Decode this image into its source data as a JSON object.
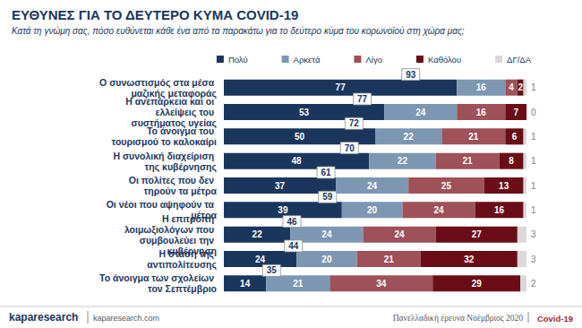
{
  "chart_data": {
    "type": "bar",
    "title": "ΕΥΘΥΝΕΣ ΓΙΑ ΤΟ ΔΕΥΤΕΡΟ ΚΥΜΑ COVID-19",
    "subtitle": "Κατά τη γνώμη σας, πόσο ευθύνεται κάθε ένα από τα παρακάτω για το δεύτερο κύμα του κορωνοϊού στη χώρα μας;",
    "orientation": "horizontal",
    "stacked": true,
    "data_labels": true,
    "tick_labels": "y",
    "grid": false,
    "legend": "top-right",
    "xlim": [
      0,
      100
    ],
    "categories": [
      "Ο συνωστισμός στα μέσα μαζικής μεταφοράς",
      "Η ανεπάρκεια και οι ελλείψεις του συστήματος υγείας",
      "Το άνοιγμα του τουρισμού το καλοκαίρι",
      "Η συνολική διαχείριση της κυβέρνησης",
      "Οι πολίτες που δεν τηρούν τα μέτρα",
      "Οι νέοι που αψηφούν τα μέτρα",
      "Η επιτροπή λοιμωξιολόγων που συμβουλεύει την κυβέρνηση",
      "Η στάση της αντιπολίτευσης",
      "Το άνοιγμα των σχολείων τον Σεπτέμβριο"
    ],
    "series": [
      {
        "name": "Πολύ",
        "color": "#1b365d",
        "values": [
          77,
          53,
          50,
          48,
          37,
          39,
          22,
          24,
          14
        ]
      },
      {
        "name": "Αρκετά",
        "color": "#7d97b3",
        "values": [
          16,
          24,
          22,
          22,
          24,
          20,
          24,
          20,
          21
        ]
      },
      {
        "name": "Λίγο",
        "color": "#9e5158",
        "values": [
          4,
          16,
          21,
          21,
          25,
          24,
          24,
          21,
          34
        ]
      },
      {
        "name": "Καθόλου",
        "color": "#6a0d17",
        "values": [
          2,
          7,
          6,
          8,
          13,
          16,
          27,
          32,
          29
        ]
      },
      {
        "name": "ΔΓ/ΔΑ",
        "color": "#d9d9d9",
        "values": [
          1,
          0,
          1,
          1,
          1,
          1,
          3,
          3,
          2
        ]
      }
    ],
    "totals": [
      93,
      77,
      72,
      70,
      61,
      59,
      46,
      44,
      35
    ],
    "footer": {
      "brand": "kaparesearch",
      "site": "kaparesearch.com",
      "note": "Πανελλαδική έρευνα Νοέμβριος 2020",
      "topic": "Covid-19"
    }
  }
}
